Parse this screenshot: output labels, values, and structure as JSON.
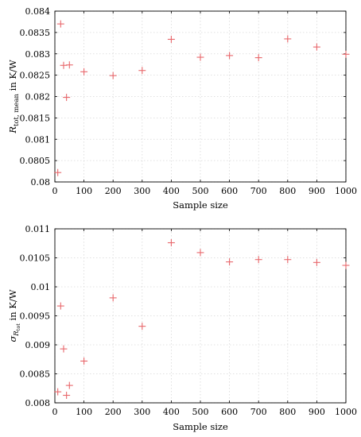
{
  "chart_data": [
    {
      "type": "scatter",
      "xlabel": "Sample size",
      "ylabel_main": "R",
      "ylabel_sub": "tot, mean",
      "ylabel_suffix": " in K/W",
      "xlim": [
        0,
        1000
      ],
      "ylim": [
        0.08,
        0.084
      ],
      "xticks": [
        "0",
        "100",
        "200",
        "300",
        "400",
        "500",
        "600",
        "700",
        "800",
        "900",
        "1000"
      ],
      "xtick_values": [
        0,
        100,
        200,
        300,
        400,
        500,
        600,
        700,
        800,
        900,
        1000
      ],
      "yticks": [
        "0.08",
        "0.0805",
        "0.081",
        "0.0815",
        "0.082",
        "0.0825",
        "0.083",
        "0.0835",
        "0.084"
      ],
      "ytick_values": [
        0.08,
        0.0805,
        0.081,
        0.0815,
        0.082,
        0.0825,
        0.083,
        0.0835,
        0.084
      ],
      "grid": true,
      "marker_color": "#e8676b",
      "points": [
        {
          "x": 10,
          "y": 0.08022
        },
        {
          "x": 20,
          "y": 0.0837
        },
        {
          "x": 30,
          "y": 0.08273
        },
        {
          "x": 40,
          "y": 0.08198
        },
        {
          "x": 50,
          "y": 0.08274
        },
        {
          "x": 100,
          "y": 0.08258
        },
        {
          "x": 200,
          "y": 0.08249
        },
        {
          "x": 300,
          "y": 0.08261
        },
        {
          "x": 400,
          "y": 0.08334
        },
        {
          "x": 500,
          "y": 0.08292
        },
        {
          "x": 600,
          "y": 0.08296
        },
        {
          "x": 700,
          "y": 0.08291
        },
        {
          "x": 800,
          "y": 0.08335
        },
        {
          "x": 900,
          "y": 0.08316
        },
        {
          "x": 1000,
          "y": 0.08299
        }
      ]
    },
    {
      "type": "scatter",
      "xlabel": "Sample size",
      "ylabel_main": "σ",
      "ylabel_sub": "R",
      "ylabel_subsub": "tot",
      "ylabel_suffix": " in K/W",
      "xlim": [
        0,
        1000
      ],
      "ylim": [
        0.008,
        0.011
      ],
      "xticks": [
        "0",
        "100",
        "200",
        "300",
        "400",
        "500",
        "600",
        "700",
        "800",
        "900",
        "1000"
      ],
      "xtick_values": [
        0,
        100,
        200,
        300,
        400,
        500,
        600,
        700,
        800,
        900,
        1000
      ],
      "yticks": [
        "0.008",
        "0.0085",
        "0.009",
        "0.0095",
        "0.01",
        "0.0105",
        "0.011"
      ],
      "ytick_values": [
        0.008,
        0.0085,
        0.009,
        0.0095,
        0.01,
        0.0105,
        0.011
      ],
      "grid": true,
      "marker_color": "#e8676b",
      "points": [
        {
          "x": 10,
          "y": 0.00819
        },
        {
          "x": 20,
          "y": 0.00967
        },
        {
          "x": 30,
          "y": 0.00893
        },
        {
          "x": 40,
          "y": 0.00813
        },
        {
          "x": 50,
          "y": 0.0083
        },
        {
          "x": 100,
          "y": 0.00872
        },
        {
          "x": 200,
          "y": 0.00981
        },
        {
          "x": 300,
          "y": 0.00932
        },
        {
          "x": 400,
          "y": 0.01076
        },
        {
          "x": 500,
          "y": 0.01059
        },
        {
          "x": 600,
          "y": 0.01043
        },
        {
          "x": 700,
          "y": 0.01047
        },
        {
          "x": 800,
          "y": 0.01047
        },
        {
          "x": 900,
          "y": 0.01042
        },
        {
          "x": 1000,
          "y": 0.01037
        }
      ]
    }
  ]
}
